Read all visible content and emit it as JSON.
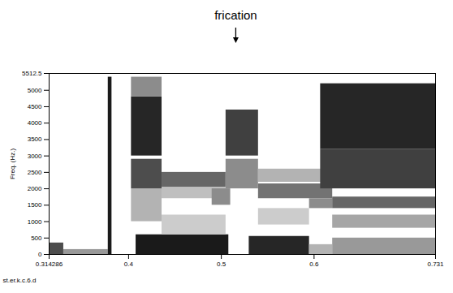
{
  "chart_data": {
    "type": "heatmap",
    "annotations": [
      {
        "text": "frication",
        "x": 0.516
      }
    ],
    "xlabel": "st.er.k.c.6.d",
    "ylabel": "Freq. (Hz.)",
    "xlim": [
      0.314286,
      0.731
    ],
    "ylim": [
      0,
      5512.5
    ],
    "xticks": [
      0.314286,
      0.4,
      0.5,
      0.6,
      0.731
    ],
    "yticks": [
      0,
      500,
      1000,
      1500,
      2000,
      2500,
      3000,
      3500,
      4000,
      4500,
      5000,
      5512.5
    ],
    "value_range": [
      0,
      1
    ],
    "color": "#000000",
    "grid": false,
    "cells": [
      {
        "x1": 0.314286,
        "x2": 0.33,
        "y1": 0,
        "y2": 350,
        "value": 0.7
      },
      {
        "x1": 0.33,
        "x2": 0.378,
        "y1": 0,
        "y2": 150,
        "value": 0.4
      },
      {
        "x1": 0.378,
        "x2": 0.382,
        "y1": 0,
        "y2": 5400,
        "value": 0.9
      },
      {
        "x1": 0.403,
        "x2": 0.436,
        "y1": 1000,
        "y2": 2000,
        "value": 0.3
      },
      {
        "x1": 0.403,
        "x2": 0.436,
        "y1": 2000,
        "y2": 2900,
        "value": 0.7
      },
      {
        "x1": 0.403,
        "x2": 0.436,
        "y1": 3000,
        "y2": 4800,
        "value": 0.85
      },
      {
        "x1": 0.403,
        "x2": 0.436,
        "y1": 4800,
        "y2": 5400,
        "value": 0.45
      },
      {
        "x1": 0.408,
        "x2": 0.508,
        "y1": 0,
        "y2": 600,
        "value": 0.9
      },
      {
        "x1": 0.436,
        "x2": 0.505,
        "y1": 600,
        "y2": 1200,
        "value": 0.2
      },
      {
        "x1": 0.436,
        "x2": 0.505,
        "y1": 1700,
        "y2": 2050,
        "value": 0.25
      },
      {
        "x1": 0.436,
        "x2": 0.505,
        "y1": 2050,
        "y2": 2500,
        "value": 0.6
      },
      {
        "x1": 0.49,
        "x2": 0.51,
        "y1": 1500,
        "y2": 2000,
        "value": 0.45
      },
      {
        "x1": 0.505,
        "x2": 0.54,
        "y1": 2000,
        "y2": 2900,
        "value": 0.45
      },
      {
        "x1": 0.505,
        "x2": 0.54,
        "y1": 3000,
        "y2": 4400,
        "value": 0.75
      },
      {
        "x1": 0.53,
        "x2": 0.595,
        "y1": 0,
        "y2": 550,
        "value": 0.85
      },
      {
        "x1": 0.54,
        "x2": 0.595,
        "y1": 900,
        "y2": 1400,
        "value": 0.2
      },
      {
        "x1": 0.54,
        "x2": 0.62,
        "y1": 1700,
        "y2": 2150,
        "value": 0.55
      },
      {
        "x1": 0.54,
        "x2": 0.62,
        "y1": 2200,
        "y2": 2600,
        "value": 0.3
      },
      {
        "x1": 0.595,
        "x2": 0.62,
        "y1": 0,
        "y2": 300,
        "value": 0.3
      },
      {
        "x1": 0.595,
        "x2": 0.62,
        "y1": 1400,
        "y2": 1700,
        "value": 0.45
      },
      {
        "x1": 0.607,
        "x2": 0.731,
        "y1": 2000,
        "y2": 3200,
        "value": 0.75
      },
      {
        "x1": 0.607,
        "x2": 0.731,
        "y1": 3200,
        "y2": 5200,
        "value": 0.85
      },
      {
        "x1": 0.62,
        "x2": 0.731,
        "y1": 0,
        "y2": 500,
        "value": 0.4
      },
      {
        "x1": 0.62,
        "x2": 0.731,
        "y1": 800,
        "y2": 1200,
        "value": 0.35
      },
      {
        "x1": 0.62,
        "x2": 0.731,
        "y1": 1400,
        "y2": 1750,
        "value": 0.6
      }
    ]
  }
}
